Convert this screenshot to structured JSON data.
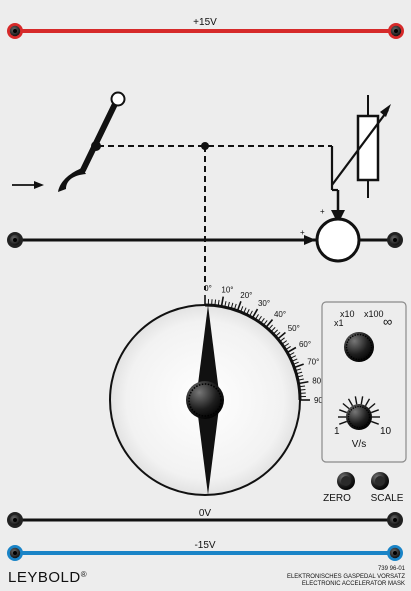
{
  "rails": {
    "top_label": "+15V",
    "top_color": "#d62a2a",
    "middle_label": "0V",
    "bottom_label": "-15V",
    "bottom_color": "#1a84c7"
  },
  "dial": {
    "ticks": [
      "0°",
      "10°",
      "20°",
      "30°",
      "40°",
      "50°",
      "60°",
      "70°",
      "80°",
      "90°"
    ],
    "pointer_angle_deg": 0
  },
  "control": {
    "range_labels": [
      "x1",
      "x10",
      "x100",
      "∞"
    ],
    "rate_min": "1",
    "rate_max": "10",
    "rate_unit": "V/s"
  },
  "buttons": {
    "zero_label": "ZERO",
    "scale_label": "SCALE"
  },
  "footer": {
    "brand": "LEYBOLD",
    "brand_mark": "®",
    "code": "739 96-01",
    "title_de": "ELEKTRONISCHES GASPEDAL VORSATZ",
    "title_en": "ELECTRONIC ACCELERATOR MASK"
  },
  "icons": [
    "socket-icon",
    "pedal-icon",
    "potentiometer-icon",
    "summing-junction-icon",
    "arrow-icon"
  ]
}
